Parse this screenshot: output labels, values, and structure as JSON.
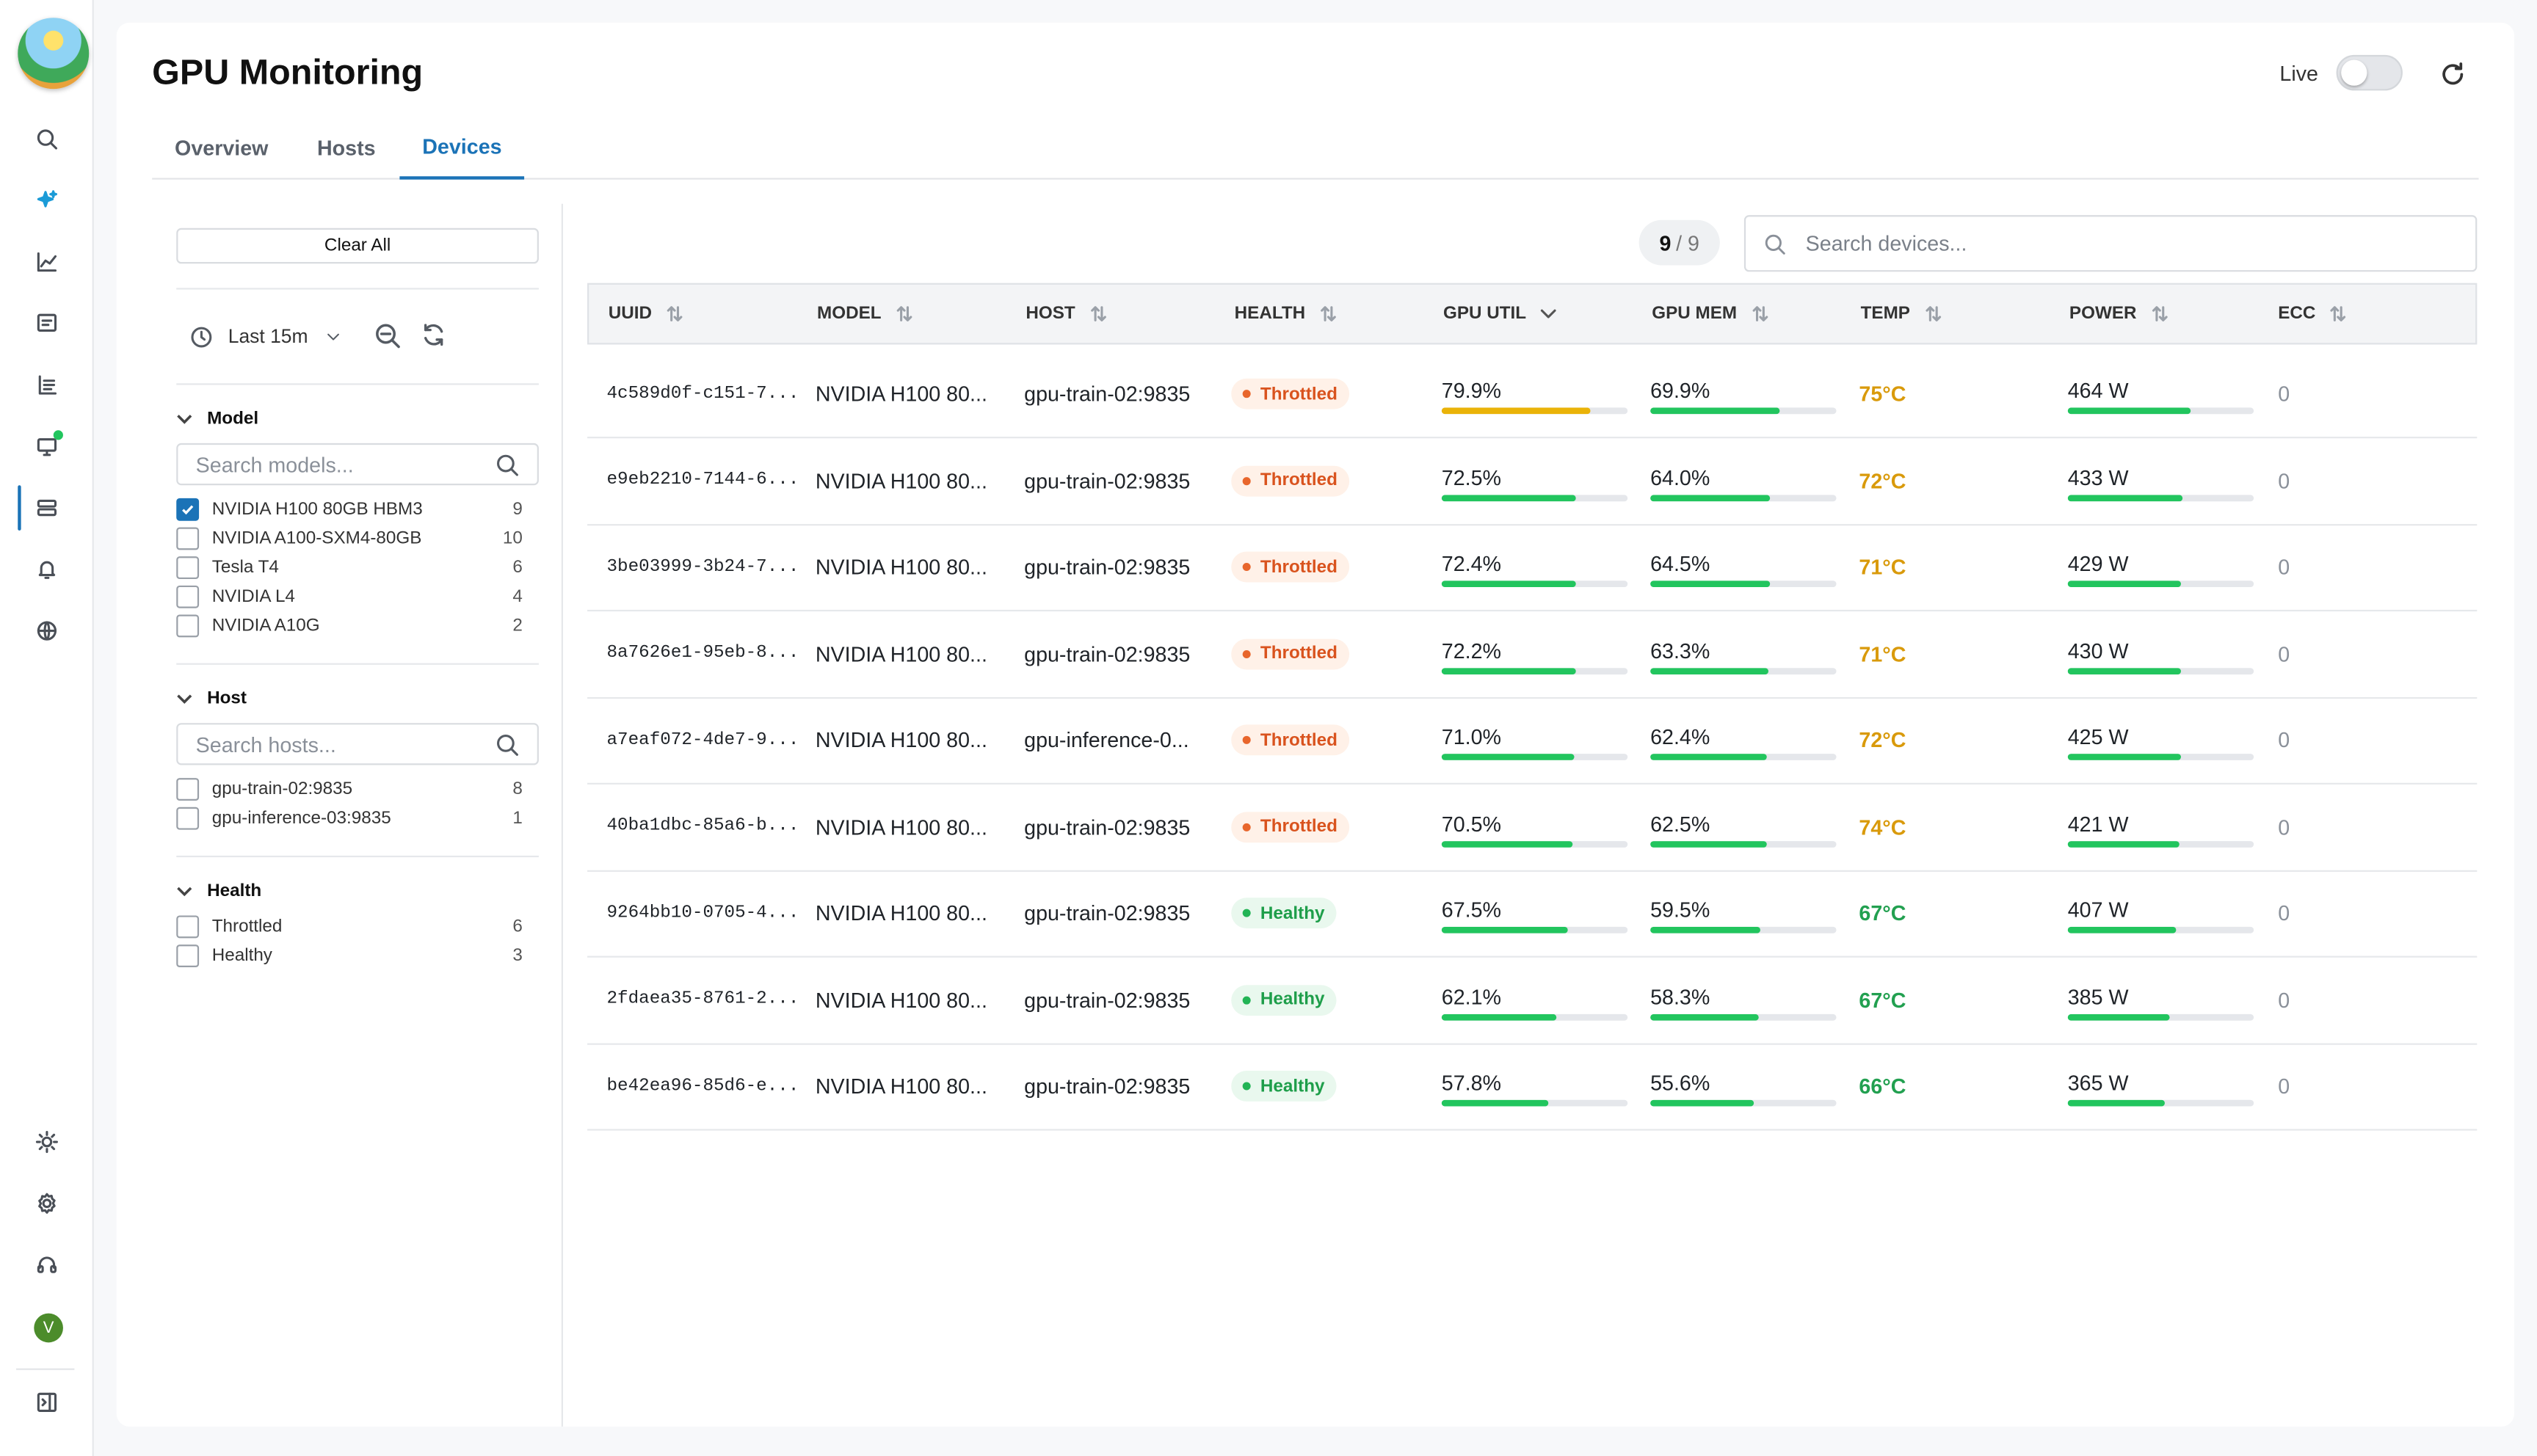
{
  "app": {
    "title": "GPU Monitoring",
    "live_label": "Live",
    "live_on": false
  },
  "tabs": [
    {
      "label": "Overview"
    },
    {
      "label": "Hosts"
    },
    {
      "label": "Devices"
    }
  ],
  "active_tab": "Devices",
  "sidebar_nav": [
    "search-icon",
    "sparkle-icon",
    "chart-icon",
    "logs-icon",
    "list-icon",
    "monitor-icon",
    "database-icon",
    "bell-icon",
    "globe-icon",
    "sun-icon",
    "settings-icon",
    "headset-icon",
    "avatar",
    "panel-toggle-icon"
  ],
  "user": {
    "initial": "V"
  },
  "filters": {
    "clear_all": "Clear All",
    "time_range": "Last 15m",
    "model": {
      "title": "Model",
      "placeholder": "Search models...",
      "options": [
        {
          "label": "NVIDIA H100 80GB HBM3",
          "count": "9",
          "checked": true
        },
        {
          "label": "NVIDIA A100-SXM4-80GB",
          "count": "10",
          "checked": false
        },
        {
          "label": "Tesla T4",
          "count": "6",
          "checked": false
        },
        {
          "label": "NVIDIA L4",
          "count": "4",
          "checked": false
        },
        {
          "label": "NVIDIA A10G",
          "count": "2",
          "checked": false
        }
      ]
    },
    "host": {
      "title": "Host",
      "placeholder": "Search hosts...",
      "options": [
        {
          "label": "gpu-train-02:9835",
          "count": "8",
          "checked": false
        },
        {
          "label": "gpu-inference-03:9835",
          "count": "1",
          "checked": false
        }
      ]
    },
    "health": {
      "title": "Health",
      "options": [
        {
          "label": "Throttled",
          "count": "6",
          "checked": false
        },
        {
          "label": "Healthy",
          "count": "3",
          "checked": false
        }
      ]
    }
  },
  "results": {
    "shown": "9",
    "separator": "/",
    "total": "9"
  },
  "search": {
    "placeholder": "Search devices..."
  },
  "table": {
    "columns": [
      {
        "label": "UUID",
        "sort": "none"
      },
      {
        "label": "MODEL",
        "sort": "none"
      },
      {
        "label": "HOST",
        "sort": "none"
      },
      {
        "label": "HEALTH",
        "sort": "none"
      },
      {
        "label": "GPU UTIL",
        "sort": "desc"
      },
      {
        "label": "GPU MEM",
        "sort": "none"
      },
      {
        "label": "TEMP",
        "sort": "none"
      },
      {
        "label": "POWER",
        "sort": "none"
      },
      {
        "label": "ECC",
        "sort": "none"
      }
    ],
    "rows": [
      {
        "uuid": "4c589d0f-c151-7...",
        "model": "NVIDIA H100 80...",
        "host": "gpu-train-02:9835",
        "health": "Throttled",
        "util": "79.9%",
        "util_frac": 0.799,
        "mem": "69.9%",
        "mem_frac": 0.699,
        "temp": "75°C",
        "power": "464 W",
        "power_frac": 0.66,
        "ecc": "0"
      },
      {
        "uuid": "e9eb2210-7144-6...",
        "model": "NVIDIA H100 80...",
        "host": "gpu-train-02:9835",
        "health": "Throttled",
        "util": "72.5%",
        "util_frac": 0.725,
        "mem": "64.0%",
        "mem_frac": 0.64,
        "temp": "72°C",
        "power": "433 W",
        "power_frac": 0.62,
        "ecc": "0"
      },
      {
        "uuid": "3be03999-3b24-7...",
        "model": "NVIDIA H100 80...",
        "host": "gpu-train-02:9835",
        "health": "Throttled",
        "util": "72.4%",
        "util_frac": 0.724,
        "mem": "64.5%",
        "mem_frac": 0.645,
        "temp": "71°C",
        "power": "429 W",
        "power_frac": 0.61,
        "ecc": "0"
      },
      {
        "uuid": "8a7626e1-95eb-8...",
        "model": "NVIDIA H100 80...",
        "host": "gpu-train-02:9835",
        "health": "Throttled",
        "util": "72.2%",
        "util_frac": 0.722,
        "mem": "63.3%",
        "mem_frac": 0.633,
        "temp": "71°C",
        "power": "430 W",
        "power_frac": 0.61,
        "ecc": "0"
      },
      {
        "uuid": "a7eaf072-4de7-9...",
        "model": "NVIDIA H100 80...",
        "host": "gpu-inference-0...",
        "health": "Throttled",
        "util": "71.0%",
        "util_frac": 0.71,
        "mem": "62.4%",
        "mem_frac": 0.624,
        "temp": "72°C",
        "power": "425 W",
        "power_frac": 0.61,
        "ecc": "0"
      },
      {
        "uuid": "40ba1dbc-85a6-b...",
        "model": "NVIDIA H100 80...",
        "host": "gpu-train-02:9835",
        "health": "Throttled",
        "util": "70.5%",
        "util_frac": 0.705,
        "mem": "62.5%",
        "mem_frac": 0.625,
        "temp": "74°C",
        "power": "421 W",
        "power_frac": 0.6,
        "ecc": "0"
      },
      {
        "uuid": "9264bb10-0705-4...",
        "model": "NVIDIA H100 80...",
        "host": "gpu-train-02:9835",
        "health": "Healthy",
        "util": "67.5%",
        "util_frac": 0.675,
        "mem": "59.5%",
        "mem_frac": 0.595,
        "temp": "67°C",
        "power": "407 W",
        "power_frac": 0.58,
        "ecc": "0"
      },
      {
        "uuid": "2fdaea35-8761-2...",
        "model": "NVIDIA H100 80...",
        "host": "gpu-train-02:9835",
        "health": "Healthy",
        "util": "62.1%",
        "util_frac": 0.621,
        "mem": "58.3%",
        "mem_frac": 0.583,
        "temp": "67°C",
        "power": "385 W",
        "power_frac": 0.55,
        "ecc": "0"
      },
      {
        "uuid": "be42ea96-85d6-e...",
        "model": "NVIDIA H100 80...",
        "host": "gpu-train-02:9835",
        "health": "Healthy",
        "util": "57.8%",
        "util_frac": 0.578,
        "mem": "55.6%",
        "mem_frac": 0.556,
        "temp": "66°C",
        "power": "365 W",
        "power_frac": 0.52,
        "ecc": "0"
      }
    ]
  },
  "colors": {
    "accent": "#1b73b7",
    "bar_green": "#22c55e",
    "bar_amber": "#eab308",
    "temp_warm": "#d99a0b",
    "temp_ok": "#22a050",
    "throttled": "#d9531e",
    "healthy": "#1e9e4a"
  }
}
